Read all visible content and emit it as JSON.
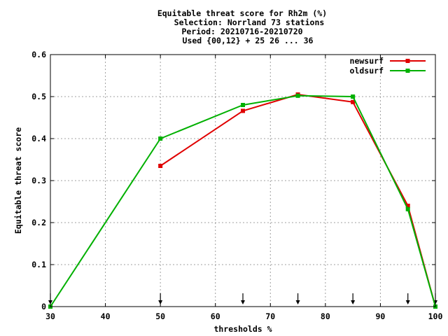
{
  "chart_data": {
    "type": "line",
    "title_lines": [
      "Equitable threat score  for Rh2m (%)",
      "Selection: Norrland     73 stations",
      "Period: 20210716-20210720",
      "Used {00,12} + 25 26 ... 36"
    ],
    "xlabel": "thresholds %",
    "ylabel": "Equitable threat score",
    "xlim": [
      30,
      100
    ],
    "ylim": [
      0,
      0.6
    ],
    "xticks": [
      30,
      40,
      50,
      60,
      70,
      80,
      90,
      100
    ],
    "xtick_labels": [
      "30",
      "40",
      "50",
      "60",
      "70",
      "80",
      "90",
      "100"
    ],
    "yticks": [
      0,
      0.1,
      0.2,
      0.3,
      0.4,
      0.5,
      0.6
    ],
    "ytick_labels": [
      "0",
      "0.1",
      "0.2",
      "0.3",
      "0.4",
      "0.5",
      "0.6"
    ],
    "grid": true,
    "legend_position": "top-right",
    "threshold_markers": [
      30,
      50,
      65,
      75,
      85,
      95,
      100
    ],
    "series": [
      {
        "name": "newsurf",
        "color": "#e00000",
        "x": [
          50,
          65,
          75,
          85,
          95,
          100
        ],
        "y": [
          0.335,
          0.466,
          0.505,
          0.487,
          0.24,
          0.0
        ]
      },
      {
        "name": "oldsurf",
        "color": "#00b000",
        "x": [
          30,
          50,
          65,
          75,
          85,
          95,
          100
        ],
        "y": [
          0.0,
          0.4,
          0.48,
          0.502,
          0.5,
          0.232,
          0.0
        ]
      }
    ]
  }
}
